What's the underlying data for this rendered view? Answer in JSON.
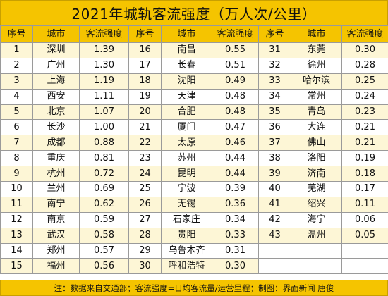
{
  "title": "2021年城轨客流强度（万人次/公里）",
  "headers": [
    "序号",
    "城市",
    "客流强度",
    "序号",
    "城市",
    "客流强度",
    "序号",
    "城市",
    "客流强度"
  ],
  "rows": [
    {
      "cells": [
        "1",
        "深圳",
        "1.39",
        "16",
        "南昌",
        "0.55",
        "31",
        "东莞",
        "0.30"
      ]
    },
    {
      "cells": [
        "2",
        "广州",
        "1.30",
        "17",
        "长春",
        "0.51",
        "32",
        "徐州",
        "0.28"
      ]
    },
    {
      "cells": [
        "3",
        "上海",
        "1.19",
        "18",
        "沈阳",
        "0.49",
        "33",
        "哈尔滨",
        "0.25"
      ]
    },
    {
      "cells": [
        "4",
        "西安",
        "1.11",
        "19",
        "天津",
        "0.48",
        "34",
        "常州",
        "0.24"
      ]
    },
    {
      "cells": [
        "5",
        "北京",
        "1.07",
        "20",
        "合肥",
        "0.48",
        "35",
        "青岛",
        "0.23"
      ]
    },
    {
      "cells": [
        "6",
        "长沙",
        "1.00",
        "21",
        "厦门",
        "0.47",
        "36",
        "大连",
        "0.21"
      ]
    },
    {
      "cells": [
        "7",
        "成都",
        "0.88",
        "22",
        "太原",
        "0.46",
        "37",
        "佛山",
        "0.21"
      ]
    },
    {
      "cells": [
        "8",
        "重庆",
        "0.81",
        "23",
        "苏州",
        "0.44",
        "38",
        "洛阳",
        "0.19"
      ]
    },
    {
      "cells": [
        "9",
        "杭州",
        "0.72",
        "24",
        "昆明",
        "0.44",
        "39",
        "济南",
        "0.18"
      ]
    },
    {
      "cells": [
        "10",
        "兰州",
        "0.69",
        "25",
        "宁波",
        "0.39",
        "40",
        "芜湖",
        "0.17"
      ]
    },
    {
      "cells": [
        "11",
        "南宁",
        "0.62",
        "26",
        "无锡",
        "0.36",
        "41",
        "绍兴",
        "0.11"
      ]
    },
    {
      "cells": [
        "12",
        "南京",
        "0.59",
        "27",
        "石家庄",
        "0.34",
        "42",
        "海宁",
        "0.06"
      ]
    },
    {
      "cells": [
        "13",
        "武汉",
        "0.58",
        "28",
        "贵阳",
        "0.33",
        "43",
        "温州",
        "0.05"
      ]
    },
    {
      "cells": [
        "14",
        "郑州",
        "0.57",
        "29",
        "乌鲁木齐",
        "0.31",
        "",
        "",
        ""
      ]
    },
    {
      "cells": [
        "15",
        "福州",
        "0.56",
        "30",
        "呼和浩特",
        "0.30",
        "",
        "",
        ""
      ]
    }
  ],
  "footer": "注：数据来自交通部；客流强度=日均客流量/运营里程；制图：界面新闻 唐俊",
  "colors": {
    "header_fill": "#f5c400",
    "odd_row_fill": "#fdf6d6",
    "border": "#9a9a9a"
  }
}
